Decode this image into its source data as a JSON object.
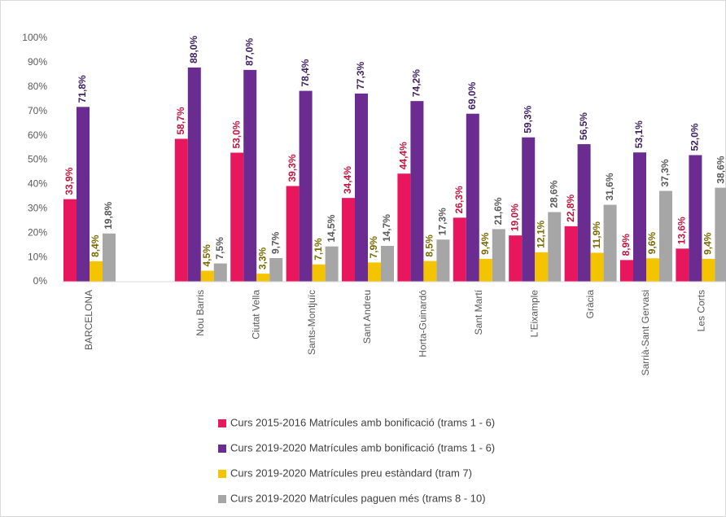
{
  "chart_data": {
    "type": "bar",
    "categories": [
      "BARCELONA",
      null,
      "Nou Barris",
      "Ciutat Vella",
      "Sants-Montjuïc",
      "Sant Andreu",
      "Horta-Guinardó",
      "Sant Martí",
      "L'Eixample",
      "Gràcia",
      "Sarrià-Sant Gervasi",
      "Les Corts"
    ],
    "series": [
      {
        "name": "Curs 2015-2016 Matrícules amb bonificació (trams 1 - 6)",
        "color": "#e8175d",
        "label_color": "#c0143f",
        "values": [
          33.9,
          null,
          58.7,
          53.0,
          39.3,
          34.4,
          44.4,
          26.3,
          19.0,
          22.8,
          8.9,
          13.6
        ],
        "value_labels": [
          "33,9%",
          null,
          "58,7%",
          "53,0%",
          "39,3%",
          "34,4%",
          "44,4%",
          "26,3%",
          "19,0%",
          "22,8%",
          "8,9%",
          "13,6%"
        ]
      },
      {
        "name": "Curs 2019-2020 Matrícules amb bonificació (trams 1 - 6)",
        "color": "#6a2c91",
        "label_color": "#3f1f63",
        "values": [
          71.8,
          null,
          88.0,
          87.0,
          78.4,
          77.3,
          74.2,
          69.0,
          59.3,
          56.5,
          53.1,
          52.0
        ],
        "value_labels": [
          "71,8%",
          null,
          "88,0%",
          "87,0%",
          "78,4%",
          "77,3%",
          "74,2%",
          "69,0%",
          "59,3%",
          "56,5%",
          "53,1%",
          "52,0%"
        ]
      },
      {
        "name": "Curs 2019-2020 Matrícules preu estàndard (tram 7)",
        "color": "#f5c400",
        "label_color": "#7a6a00",
        "values": [
          8.4,
          null,
          4.5,
          3.3,
          7.1,
          7.9,
          8.5,
          9.4,
          12.1,
          11.9,
          9.6,
          9.4
        ],
        "value_labels": [
          "8,4%",
          null,
          "4,5%",
          "3,3%",
          "7,1%",
          "7,9%",
          "8,5%",
          "9,4%",
          "12,1%",
          "11,9%",
          "9,6%",
          "9,4%"
        ]
      },
      {
        "name": "Curs 2019-2020 Matrícules paguen més (trams 8 - 10)",
        "color": "#a6a6a6",
        "label_color": "#595959",
        "values": [
          19.8,
          null,
          7.5,
          9.7,
          14.5,
          14.7,
          17.3,
          21.6,
          28.6,
          31.6,
          37.3,
          38.6
        ],
        "value_labels": [
          "19,8%",
          null,
          "7,5%",
          "9,7%",
          "14,5%",
          "14,7%",
          "17,3%",
          "21,6%",
          "28,6%",
          "31,6%",
          "37,3%",
          "38,6%"
        ]
      }
    ],
    "ylim": [
      0,
      100
    ],
    "yticks": [
      {
        "value": 0,
        "label": "0%"
      },
      {
        "value": 10,
        "label": "10%"
      },
      {
        "value": 20,
        "label": "20%"
      },
      {
        "value": 30,
        "label": "30%"
      },
      {
        "value": 40,
        "label": "40%"
      },
      {
        "value": 50,
        "label": "50%"
      },
      {
        "value": 60,
        "label": "60%"
      },
      {
        "value": 70,
        "label": "70%"
      },
      {
        "value": 80,
        "label": "80%"
      },
      {
        "value": 90,
        "label": "90%"
      },
      {
        "value": 100,
        "label": "100%"
      }
    ],
    "grid": false,
    "legend": "bottom"
  }
}
